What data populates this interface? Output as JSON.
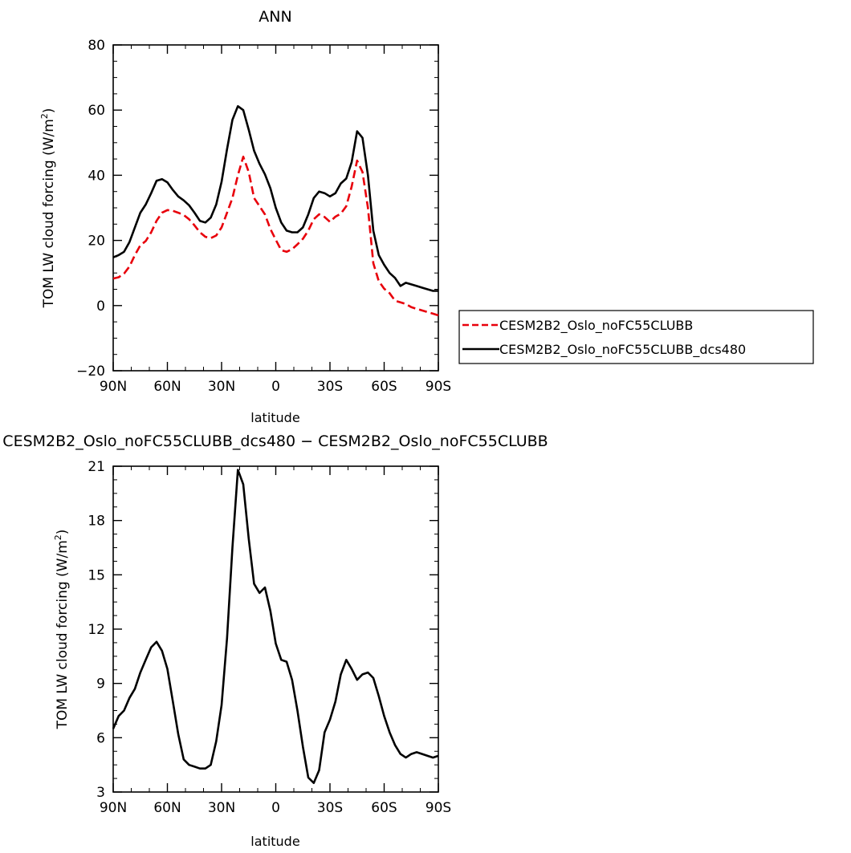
{
  "chart_data": [
    {
      "type": "line",
      "title": "ANN",
      "xlabel": "latitude",
      "ylabel": "TOM LW cloud forcing (W/m",
      "ylabel_sup": "2",
      "ylabel_close": ")",
      "xlim": [
        90,
        -90
      ],
      "ylim": [
        -20,
        80
      ],
      "x_ticks": [
        90,
        60,
        30,
        0,
        -30,
        -60,
        -90
      ],
      "x_tick_labels": [
        "90N",
        "60N",
        "30N",
        "0",
        "30S",
        "60S",
        "90S"
      ],
      "y_ticks": [
        -20,
        0,
        20,
        40,
        60,
        80
      ],
      "y_tick_labels": [
        "−20",
        "0",
        "20",
        "40",
        "60",
        "80"
      ],
      "legend_position": "right",
      "series": [
        {
          "name": "CESM2B2_Oslo_noFC55CLUBB",
          "color": "#e8000b",
          "dash": "dashed",
          "x": [
            90,
            87,
            84,
            81,
            78,
            75,
            72,
            69,
            66,
            63,
            60,
            57,
            54,
            51,
            48,
            45,
            42,
            39,
            36,
            33,
            30,
            27,
            24,
            21,
            18,
            15,
            12,
            9,
            6,
            3,
            0,
            -3,
            -6,
            -9,
            -12,
            -15,
            -18,
            -21,
            -24,
            -27,
            -30,
            -33,
            -36,
            -39,
            -42,
            -45,
            -48,
            -51,
            -54,
            -57,
            -60,
            -63,
            -66,
            -69,
            -72,
            -75,
            -78,
            -81,
            -84,
            -87,
            -90
          ],
          "y": [
            8.3,
            8.7,
            9.8,
            12,
            15.5,
            18.5,
            19.8,
            22.5,
            26,
            28.5,
            29.3,
            29.1,
            28.5,
            27.8,
            26.5,
            24.6,
            22.5,
            21.1,
            20.7,
            21.5,
            24,
            28.5,
            33,
            40,
            45.7,
            41,
            33,
            30.5,
            28,
            23.5,
            20.2,
            17,
            16.5,
            17.3,
            18.8,
            20.5,
            23,
            26.5,
            28,
            27.2,
            25.7,
            27.3,
            28.2,
            30.5,
            36.5,
            44.5,
            41,
            30,
            13,
            7.5,
            5.2,
            3.8,
            1.5,
            1,
            0.5,
            -0.5,
            -1,
            -1.5,
            -2,
            -2.5,
            -3
          ]
        },
        {
          "name": "CESM2B2_Oslo_noFC55CLUBB_dcs480",
          "color": "#000000",
          "dash": "solid",
          "x": [
            90,
            87,
            84,
            81,
            78,
            75,
            72,
            69,
            66,
            63,
            60,
            57,
            54,
            51,
            48,
            45,
            42,
            39,
            36,
            33,
            30,
            27,
            24,
            21,
            18,
            15,
            12,
            9,
            6,
            3,
            0,
            -3,
            -6,
            -9,
            -12,
            -15,
            -18,
            -21,
            -24,
            -27,
            -30,
            -33,
            -36,
            -39,
            -42,
            -45,
            -48,
            -51,
            -54,
            -57,
            -60,
            -63,
            -66,
            -69,
            -72,
            -75,
            -78,
            -81,
            -84,
            -87,
            -90
          ],
          "y": [
            14.8,
            15.5,
            16.5,
            19.5,
            24,
            28.5,
            31,
            34.5,
            38.3,
            38.8,
            37.8,
            35.5,
            33.5,
            32.3,
            30.8,
            28.5,
            26,
            25.5,
            27,
            31,
            38,
            48,
            57,
            61.2,
            60,
            54,
            47.5,
            43.5,
            40.3,
            36,
            30,
            25.5,
            23,
            22.5,
            22.5,
            24,
            28,
            33,
            35,
            34.5,
            33.5,
            34.5,
            37.5,
            39,
            44,
            53.5,
            51.5,
            40,
            23,
            15.5,
            12.5,
            10,
            8.5,
            6,
            7,
            6.5,
            6,
            5.5,
            5,
            4.5,
            4.5
          ]
        }
      ]
    },
    {
      "type": "line",
      "title": "CESM2B2_Oslo_noFC55CLUBB_dcs480 − CESM2B2_Oslo_noFC55CLUBB",
      "xlabel": "latitude",
      "ylabel": "TOM LW cloud forcing (W/m",
      "ylabel_sup": "2",
      "ylabel_close": ")",
      "xlim": [
        90,
        -90
      ],
      "ylim": [
        3,
        21
      ],
      "x_ticks": [
        90,
        60,
        30,
        0,
        -30,
        -60,
        -90
      ],
      "x_tick_labels": [
        "90N",
        "60N",
        "30N",
        "0",
        "30S",
        "60S",
        "90S"
      ],
      "y_ticks": [
        3,
        6,
        9,
        12,
        15,
        18,
        21
      ],
      "y_tick_labels": [
        "3",
        "6",
        "9",
        "12",
        "15",
        "18",
        "21"
      ],
      "series": [
        {
          "color": "#000000",
          "dash": "solid",
          "x": [
            90,
            87,
            84,
            81,
            78,
            75,
            72,
            69,
            66,
            63,
            60,
            57,
            54,
            51,
            48,
            45,
            42,
            39,
            36,
            33,
            30,
            27,
            24,
            21,
            18,
            15,
            12,
            9,
            6,
            3,
            0,
            -3,
            -6,
            -9,
            -12,
            -15,
            -18,
            -21,
            -24,
            -27,
            -30,
            -33,
            -36,
            -39,
            -42,
            -45,
            -48,
            -51,
            -54,
            -57,
            -60,
            -63,
            -66,
            -69,
            -72,
            -75,
            -78,
            -81,
            -84,
            -87,
            -90
          ],
          "y": [
            6.5,
            7.2,
            7.5,
            8.2,
            8.7,
            9.6,
            10.3,
            11,
            11.3,
            10.8,
            9.8,
            8,
            6.2,
            4.8,
            4.5,
            4.4,
            4.3,
            4.3,
            4.5,
            5.8,
            7.8,
            11.5,
            16.5,
            20.8,
            20,
            17,
            14.5,
            14,
            14.3,
            13,
            11.2,
            10.3,
            10.2,
            9.2,
            7.5,
            5.5,
            3.8,
            3.5,
            4.2,
            6.3,
            7,
            8,
            9.5,
            10.3,
            9.8,
            9.2,
            9.5,
            9.6,
            9.3,
            8.3,
            7.2,
            6.3,
            5.6,
            5.1,
            4.9,
            5.1,
            5.2,
            5.1,
            5,
            4.9,
            5
          ]
        }
      ]
    }
  ]
}
